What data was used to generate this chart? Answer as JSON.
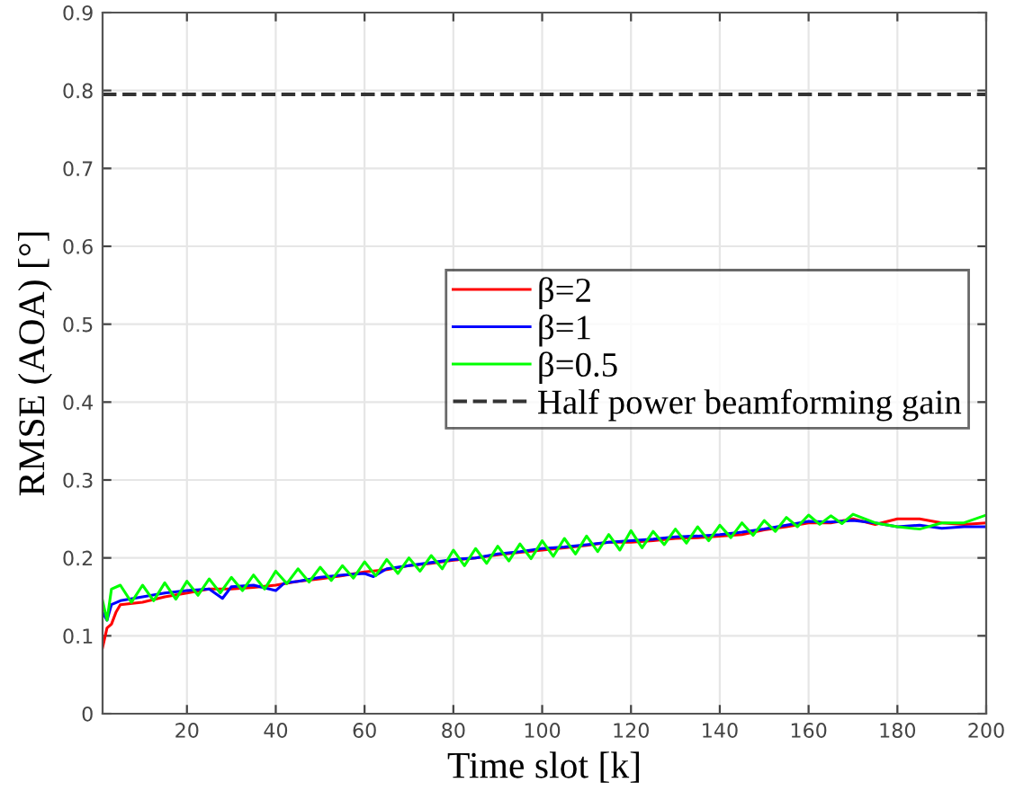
{
  "chart_data": {
    "type": "line",
    "xlabel": "Time slot [k]",
    "ylabel": "RMSE (AOA) [°]",
    "xlim": [
      1,
      200
    ],
    "xticks": [
      20,
      40,
      60,
      80,
      100,
      120,
      140,
      160,
      180,
      200
    ],
    "ylim": [
      0,
      0.9
    ],
    "yticks": [
      0,
      0.1,
      0.2,
      0.3,
      0.4,
      0.5,
      0.6,
      0.7,
      0.8,
      0.9
    ],
    "grid": true,
    "legend": "right",
    "line_style": "solid",
    "series": [
      {
        "name": "β=2",
        "color": "#ff0000",
        "x": [
          1,
          2,
          3,
          4,
          5,
          10,
          15,
          20,
          25,
          30,
          35,
          40,
          45,
          50,
          55,
          60,
          65,
          70,
          75,
          80,
          85,
          90,
          95,
          100,
          105,
          110,
          115,
          120,
          125,
          130,
          135,
          140,
          145,
          150,
          155,
          160,
          165,
          170,
          175,
          180,
          185,
          190,
          195,
          200
        ],
        "values": [
          0.085,
          0.11,
          0.115,
          0.13,
          0.14,
          0.143,
          0.15,
          0.155,
          0.16,
          0.16,
          0.162,
          0.165,
          0.17,
          0.173,
          0.177,
          0.182,
          0.185,
          0.19,
          0.193,
          0.197,
          0.2,
          0.204,
          0.207,
          0.21,
          0.213,
          0.216,
          0.22,
          0.22,
          0.222,
          0.225,
          0.226,
          0.228,
          0.23,
          0.236,
          0.24,
          0.245,
          0.245,
          0.25,
          0.243,
          0.25,
          0.25,
          0.245,
          0.243,
          0.245
        ]
      },
      {
        "name": "β=1",
        "color": "#0000ff",
        "x": [
          1,
          2,
          3,
          5,
          10,
          15,
          20,
          25,
          28,
          30,
          35,
          40,
          42,
          45,
          50,
          55,
          60,
          62,
          65,
          70,
          75,
          80,
          85,
          90,
          95,
          100,
          105,
          110,
          115,
          120,
          125,
          130,
          135,
          140,
          145,
          150,
          155,
          160,
          165,
          170,
          175,
          180,
          185,
          190,
          195,
          200
        ],
        "values": [
          0.13,
          0.12,
          0.14,
          0.145,
          0.15,
          0.155,
          0.158,
          0.16,
          0.148,
          0.163,
          0.165,
          0.158,
          0.168,
          0.17,
          0.175,
          0.178,
          0.18,
          0.176,
          0.186,
          0.19,
          0.194,
          0.198,
          0.2,
          0.205,
          0.208,
          0.212,
          0.214,
          0.217,
          0.22,
          0.222,
          0.224,
          0.227,
          0.228,
          0.23,
          0.233,
          0.237,
          0.242,
          0.247,
          0.246,
          0.248,
          0.245,
          0.24,
          0.242,
          0.238,
          0.24,
          0.24
        ]
      },
      {
        "name": "β=0.5",
        "color": "#00ff00",
        "x": [
          1,
          2,
          3,
          5,
          7.5,
          10,
          12.5,
          15,
          17.5,
          20,
          22.5,
          25,
          27.5,
          30,
          32.5,
          35,
          37.5,
          40,
          42.5,
          45,
          47.5,
          50,
          52.5,
          55,
          57.5,
          60,
          62.5,
          65,
          67.5,
          70,
          72.5,
          75,
          77.5,
          80,
          82.5,
          85,
          87.5,
          90,
          92.5,
          95,
          97.5,
          100,
          102.5,
          105,
          107.5,
          110,
          112.5,
          115,
          117.5,
          120,
          122.5,
          125,
          127.5,
          130,
          132.5,
          135,
          137.5,
          140,
          142.5,
          145,
          147.5,
          150,
          152.5,
          155,
          157.5,
          160,
          162.5,
          165,
          167.5,
          170,
          175,
          180,
          185,
          190,
          195,
          200
        ],
        "values": [
          0.145,
          0.12,
          0.16,
          0.165,
          0.143,
          0.165,
          0.145,
          0.168,
          0.147,
          0.17,
          0.152,
          0.173,
          0.155,
          0.175,
          0.158,
          0.178,
          0.16,
          0.183,
          0.167,
          0.186,
          0.169,
          0.188,
          0.171,
          0.19,
          0.174,
          0.195,
          0.177,
          0.198,
          0.18,
          0.2,
          0.183,
          0.203,
          0.186,
          0.21,
          0.19,
          0.212,
          0.193,
          0.215,
          0.196,
          0.218,
          0.199,
          0.222,
          0.202,
          0.225,
          0.205,
          0.228,
          0.208,
          0.23,
          0.21,
          0.235,
          0.213,
          0.234,
          0.217,
          0.237,
          0.219,
          0.24,
          0.222,
          0.242,
          0.226,
          0.245,
          0.229,
          0.248,
          0.234,
          0.252,
          0.24,
          0.255,
          0.243,
          0.254,
          0.244,
          0.256,
          0.245,
          0.24,
          0.237,
          0.245,
          0.245,
          0.255
        ]
      },
      {
        "name": "Half power beamforming gain",
        "color": "#333333",
        "line_style": "dashed",
        "x": [
          1,
          200
        ],
        "values": [
          0.795,
          0.795
        ]
      }
    ]
  }
}
